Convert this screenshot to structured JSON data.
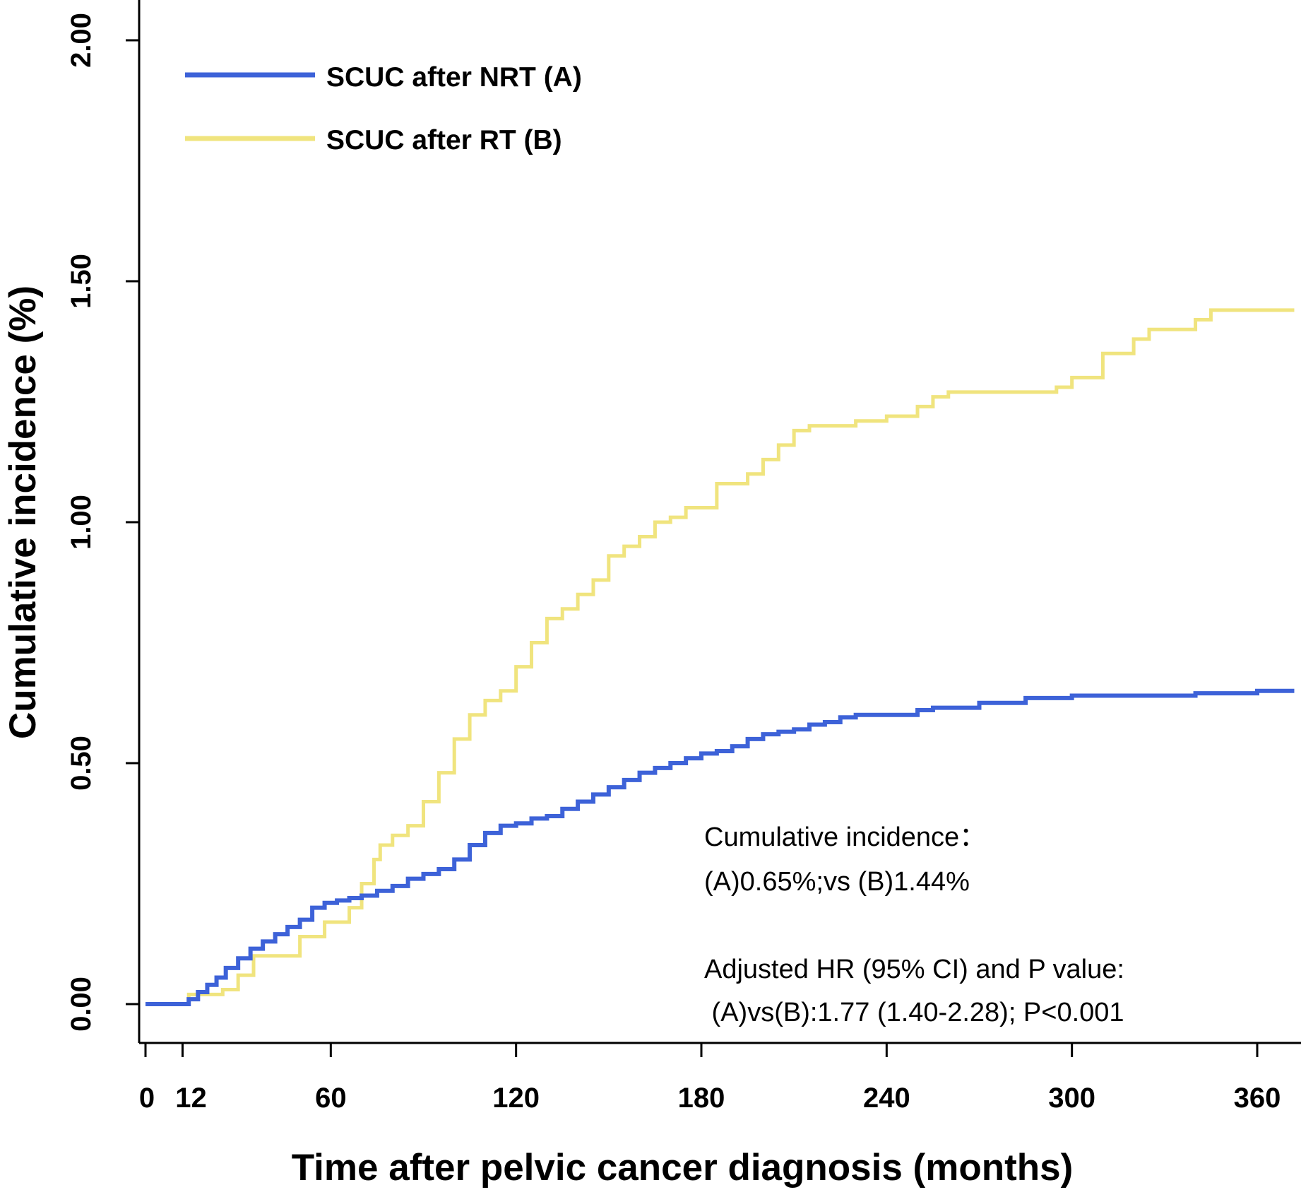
{
  "chart_data": {
    "type": "line",
    "step": true,
    "xlabel": "Time after pelvic cancer diagnosis (months)",
    "ylabel": "Cumulative incidence (%)",
    "xlim": [
      0,
      372
    ],
    "ylim": [
      0,
      2.0
    ],
    "x_ticks": [
      0,
      12,
      60,
      120,
      180,
      240,
      300,
      360
    ],
    "x_tick_labels": [
      "0",
      "12",
      "60",
      "120",
      "180",
      "240",
      "300",
      "360"
    ],
    "y_ticks": [
      0,
      0.5,
      1.0,
      1.5,
      2.0
    ],
    "y_tick_labels": [
      "0.00",
      "0.50",
      "1.00",
      "1.50",
      "2.00"
    ],
    "legend": {
      "position": "top-left",
      "entries": [
        {
          "label": "SCUC after NRT (A)",
          "color": "#3d62d8"
        },
        {
          "label": "SCUC after RT (B)",
          "color": "#f0e47e"
        }
      ]
    },
    "series": [
      {
        "name": "SCUC after NRT (A)",
        "color": "#3d62d8",
        "points": [
          [
            0,
            0
          ],
          [
            12,
            0
          ],
          [
            14,
            0.01
          ],
          [
            17,
            0.025
          ],
          [
            20,
            0.04
          ],
          [
            23,
            0.055
          ],
          [
            26,
            0.075
          ],
          [
            30,
            0.095
          ],
          [
            34,
            0.115
          ],
          [
            38,
            0.13
          ],
          [
            42,
            0.145
          ],
          [
            46,
            0.16
          ],
          [
            50,
            0.175
          ],
          [
            54,
            0.2
          ],
          [
            58,
            0.21
          ],
          [
            62,
            0.215
          ],
          [
            66,
            0.22
          ],
          [
            70,
            0.225
          ],
          [
            75,
            0.235
          ],
          [
            80,
            0.245
          ],
          [
            85,
            0.26
          ],
          [
            90,
            0.27
          ],
          [
            95,
            0.28
          ],
          [
            100,
            0.3
          ],
          [
            105,
            0.33
          ],
          [
            110,
            0.355
          ],
          [
            115,
            0.37
          ],
          [
            120,
            0.375
          ],
          [
            125,
            0.385
          ],
          [
            130,
            0.39
          ],
          [
            135,
            0.405
          ],
          [
            140,
            0.42
          ],
          [
            145,
            0.435
          ],
          [
            150,
            0.45
          ],
          [
            155,
            0.465
          ],
          [
            160,
            0.48
          ],
          [
            165,
            0.49
          ],
          [
            170,
            0.5
          ],
          [
            175,
            0.51
          ],
          [
            180,
            0.52
          ],
          [
            185,
            0.525
          ],
          [
            190,
            0.535
          ],
          [
            195,
            0.55
          ],
          [
            200,
            0.56
          ],
          [
            205,
            0.565
          ],
          [
            210,
            0.57
          ],
          [
            215,
            0.58
          ],
          [
            220,
            0.585
          ],
          [
            225,
            0.595
          ],
          [
            230,
            0.6
          ],
          [
            240,
            0.6
          ],
          [
            250,
            0.61
          ],
          [
            255,
            0.615
          ],
          [
            270,
            0.625
          ],
          [
            285,
            0.635
          ],
          [
            300,
            0.64
          ],
          [
            320,
            0.64
          ],
          [
            340,
            0.645
          ],
          [
            360,
            0.65
          ],
          [
            372,
            0.65
          ]
        ]
      },
      {
        "name": "SCUC after RT (B)",
        "color": "#f0e47e",
        "points": [
          [
            0,
            0
          ],
          [
            12,
            0
          ],
          [
            14,
            0.02
          ],
          [
            25,
            0.03
          ],
          [
            30,
            0.06
          ],
          [
            35,
            0.1
          ],
          [
            42,
            0.1
          ],
          [
            50,
            0.14
          ],
          [
            58,
            0.17
          ],
          [
            62,
            0.17
          ],
          [
            66,
            0.2
          ],
          [
            70,
            0.25
          ],
          [
            74,
            0.3
          ],
          [
            76,
            0.33
          ],
          [
            80,
            0.35
          ],
          [
            85,
            0.37
          ],
          [
            90,
            0.42
          ],
          [
            95,
            0.48
          ],
          [
            100,
            0.55
          ],
          [
            105,
            0.6
          ],
          [
            110,
            0.63
          ],
          [
            115,
            0.65
          ],
          [
            120,
            0.7
          ],
          [
            125,
            0.75
          ],
          [
            130,
            0.8
          ],
          [
            135,
            0.82
          ],
          [
            140,
            0.85
          ],
          [
            145,
            0.88
          ],
          [
            150,
            0.93
          ],
          [
            155,
            0.95
          ],
          [
            160,
            0.97
          ],
          [
            165,
            1.0
          ],
          [
            170,
            1.01
          ],
          [
            175,
            1.03
          ],
          [
            185,
            1.08
          ],
          [
            195,
            1.1
          ],
          [
            200,
            1.13
          ],
          [
            205,
            1.16
          ],
          [
            210,
            1.19
          ],
          [
            215,
            1.2
          ],
          [
            230,
            1.21
          ],
          [
            240,
            1.22
          ],
          [
            250,
            1.24
          ],
          [
            255,
            1.26
          ],
          [
            260,
            1.27
          ],
          [
            280,
            1.27
          ],
          [
            295,
            1.28
          ],
          [
            300,
            1.3
          ],
          [
            310,
            1.35
          ],
          [
            320,
            1.38
          ],
          [
            325,
            1.4
          ],
          [
            340,
            1.42
          ],
          [
            345,
            1.44
          ],
          [
            372,
            1.44
          ]
        ]
      }
    ],
    "annotations": [
      "Cumulative incidence：",
      "(A)0.65%;vs (B)1.44%",
      "Adjusted HR (95% CI) and P value:",
      " (A)vs(B):1.77 (1.40-2.28); P<0.001"
    ]
  }
}
